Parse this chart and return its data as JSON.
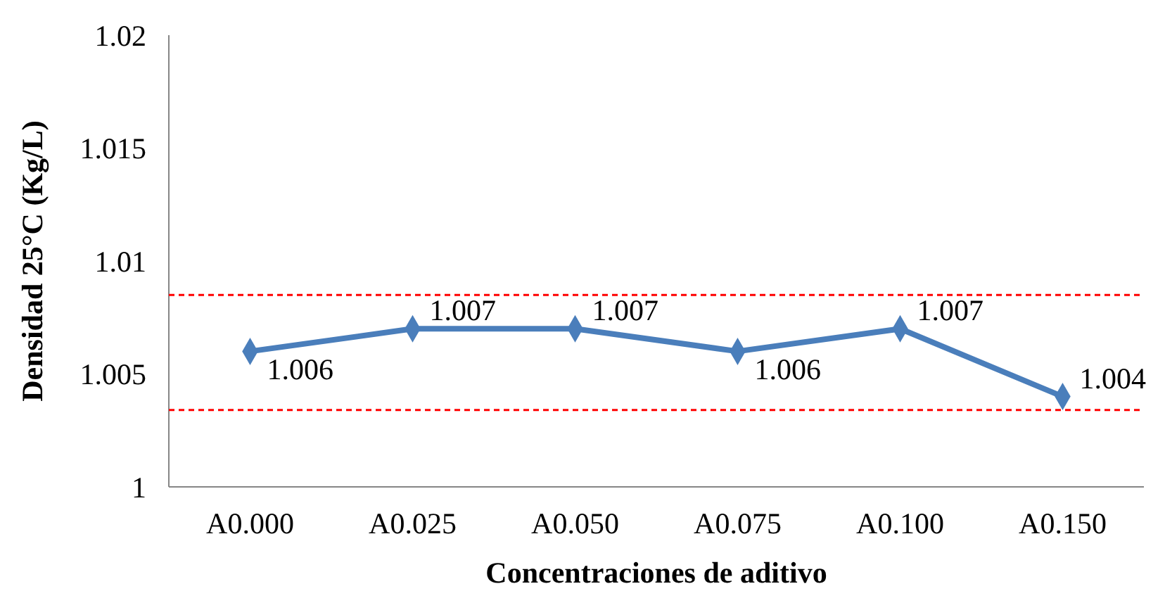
{
  "chart_data": {
    "type": "line",
    "xlabel": "Concentraciones de aditivo",
    "ylabel": "Densidad 25°C (Kg/L)",
    "categories": [
      "A0.000",
      "A0.025",
      "A0.050",
      "A0.075",
      "A0.100",
      "A0.150"
    ],
    "series": [
      {
        "color": "#4a7ebb",
        "values": [
          1.006,
          1.007,
          1.007,
          1.006,
          1.007,
          1.004
        ]
      }
    ],
    "ylim": [
      1,
      1.02
    ],
    "yticks": [
      1,
      1.005,
      1.01,
      1.015,
      1.02
    ],
    "marker": "diamond",
    "data_labels": true,
    "ref_lines": [
      {
        "axis": "y",
        "value": 1.0085,
        "color": "#ff0000",
        "line_style": "dashed"
      },
      {
        "axis": "y",
        "value": 1.0034,
        "color": "#ff0000",
        "line_style": "dashed"
      }
    ]
  }
}
